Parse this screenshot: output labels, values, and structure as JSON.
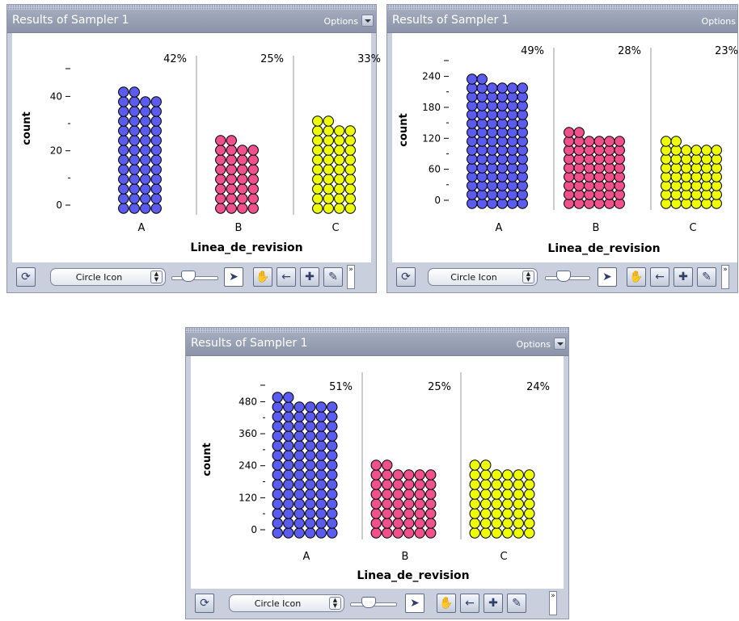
{
  "panels": [
    {
      "title": "Results of Sampler 1",
      "options_label": "Options",
      "icon_type": "Circle Icon",
      "chart_data": {
        "type": "bar",
        "xlabel": "Linea_de_revision",
        "ylabel": "count",
        "categories": [
          "A",
          "B",
          "C"
        ],
        "values": [
          42,
          25,
          33
        ],
        "percent_labels": [
          "42%",
          "25%",
          "33%"
        ],
        "y_ticks": [
          0,
          20,
          40
        ],
        "ylim": [
          0,
          52
        ],
        "colors": [
          "#5b5bf0",
          "#f0508c",
          "#eeff00"
        ]
      }
    },
    {
      "title": "Results of Sampler 1",
      "options_label": "Options",
      "icon_type": "Circle Icon",
      "chart_data": {
        "type": "bar",
        "xlabel": "Linea_de_revision",
        "ylabel": "count",
        "categories": [
          "A",
          "B",
          "C"
        ],
        "values": [
          240,
          138,
          112
        ],
        "percent_labels": [
          "49%",
          "28%",
          "23%"
        ],
        "y_ticks": [
          0,
          60,
          120,
          180,
          240
        ],
        "ylim": [
          0,
          280
        ],
        "colors": [
          "#5b5bf0",
          "#f0508c",
          "#eeff00"
        ]
      }
    },
    {
      "title": "Results of Sampler 1",
      "options_label": "Options",
      "icon_type": "Circle Icon",
      "chart_data": {
        "type": "bar",
        "xlabel": "Linea_de_revision",
        "ylabel": "count",
        "categories": [
          "A",
          "B",
          "C"
        ],
        "values": [
          505,
          243,
          238
        ],
        "percent_labels": [
          "51%",
          "25%",
          "24%"
        ],
        "y_ticks": [
          0,
          120,
          240,
          360,
          480
        ],
        "ylim": [
          0,
          560
        ],
        "colors": [
          "#5b5bf0",
          "#f0508c",
          "#eeff00"
        ]
      }
    }
  ]
}
